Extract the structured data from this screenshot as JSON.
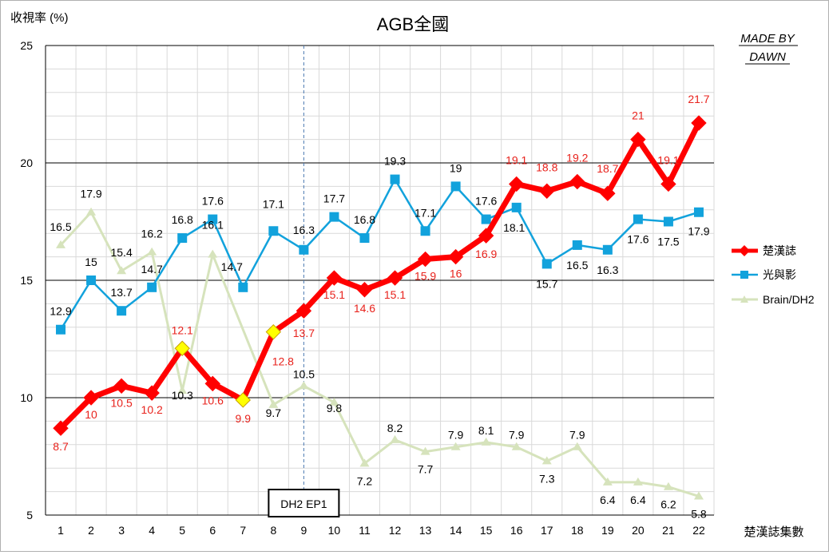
{
  "chart_data": {
    "type": "line",
    "title": "AGB全國",
    "ylabel": "收視率 (%)",
    "xlabel": "楚漢誌集數",
    "ylim": [
      5,
      25
    ],
    "yticks": [
      5,
      10,
      15,
      20,
      25
    ],
    "categories": [
      "1",
      "2",
      "3",
      "4",
      "5",
      "6",
      "7",
      "8",
      "9",
      "10",
      "11",
      "12",
      "13",
      "14",
      "15",
      "16",
      "17",
      "18",
      "19",
      "20",
      "21",
      "22"
    ],
    "grid": true,
    "legend_position": "right",
    "series": [
      {
        "name": "楚漢誌",
        "color": "#ff0000",
        "marker": "diamond",
        "values": [
          8.7,
          10,
          10.5,
          10.2,
          12.1,
          10.6,
          9.9,
          12.8,
          13.7,
          15.1,
          14.6,
          15.1,
          15.9,
          16,
          16.9,
          19.1,
          18.8,
          19.2,
          18.7,
          21,
          19.1,
          21.7
        ],
        "highlight_indices": [
          4,
          6,
          7
        ],
        "highlight_color": "#ffff00"
      },
      {
        "name": "光與影",
        "color": "#12a2dc",
        "marker": "square",
        "values": [
          12.9,
          15,
          13.7,
          14.7,
          16.8,
          17.6,
          14.7,
          17.1,
          16.3,
          17.7,
          16.8,
          19.3,
          17.1,
          19,
          17.6,
          18.1,
          15.7,
          16.5,
          16.3,
          17.6,
          17.5,
          17.9
        ]
      },
      {
        "name": "Brain/DH2",
        "color": "#d6e3bc",
        "marker": "triangle",
        "values": [
          16.5,
          17.9,
          15.4,
          16.2,
          10.3,
          16.1,
          null,
          9.7,
          10.5,
          9.8,
          7.2,
          8.2,
          7.7,
          7.9,
          8.1,
          7.9,
          7.3,
          7.9,
          6.4,
          6.4,
          6.2,
          5.8
        ]
      }
    ],
    "annotations": [
      {
        "text": "DH2 EP1",
        "x": "9"
      },
      {
        "text": "MADE BY DAWN"
      }
    ]
  }
}
